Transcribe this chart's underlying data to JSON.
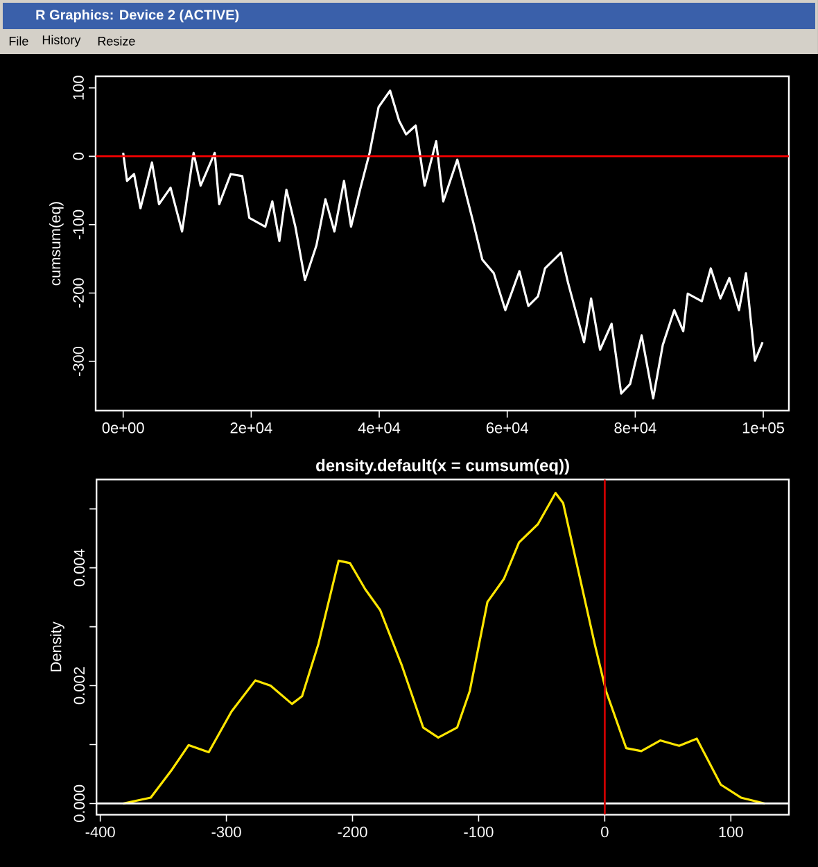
{
  "chart_data": [
    {
      "type": "line",
      "ylabel": "cumsum(eq)",
      "annotations": [
        "R Graphics: Device 2 (ACTIVE)",
        "File",
        "History",
        "Resize"
      ],
      "xlim": [
        -4300,
        104000
      ],
      "ylim": [
        -372,
        117
      ],
      "xticks": [
        {
          "value": 0,
          "label": "0e+00"
        },
        {
          "value": 20000,
          "label": "2e+04"
        },
        {
          "value": 40000,
          "label": "4e+04"
        },
        {
          "value": 60000,
          "label": "6e+04"
        },
        {
          "value": 80000,
          "label": "8e+04"
        },
        {
          "value": 100000,
          "label": "1e+05"
        }
      ],
      "yticks": [
        -300,
        -200,
        -100,
        0,
        100
      ],
      "color": "#ffffff",
      "x": [
        0,
        600,
        1700,
        2700,
        4500,
        5600,
        7400,
        9200,
        11000,
        12100,
        14300,
        15000,
        16800,
        18600,
        19700,
        22200,
        23300,
        24400,
        25500,
        26900,
        28400,
        30200,
        31600,
        33000,
        34500,
        35600,
        37000,
        38500,
        39900,
        41700,
        43100,
        44200,
        45700,
        47100,
        48900,
        50000,
        52200,
        54700,
        56100,
        57900,
        59700,
        61900,
        63300,
        64800,
        65900,
        68400,
        69500,
        72000,
        73100,
        74500,
        76300,
        77800,
        79200,
        81000,
        82800,
        84300,
        86100,
        87500,
        88200,
        90400,
        91800,
        93300,
        94700,
        96200,
        97300,
        98700,
        99900
      ],
      "values": [
        5,
        -36,
        -26,
        -76,
        -9,
        -70,
        -46,
        -110,
        5,
        -43,
        5,
        -70,
        -26,
        -29,
        -90,
        -103,
        -66,
        -124,
        -49,
        -103,
        -181,
        -130,
        -63,
        -110,
        -36,
        -103,
        -49,
        5,
        72,
        96,
        52,
        32,
        45,
        -43,
        22,
        -66,
        -5,
        -97,
        -151,
        -171,
        -225,
        -168,
        -219,
        -205,
        -164,
        -141,
        -185,
        -272,
        -208,
        -283,
        -245,
        -347,
        -333,
        -262,
        -354,
        -276,
        -225,
        -256,
        -201,
        -212,
        -164,
        -208,
        -178,
        -225,
        -171,
        -299,
        -272
      ],
      "ref_lines": [
        {
          "axis": "y",
          "value": 0,
          "color": "#ff0000"
        }
      ]
    },
    {
      "type": "line",
      "title": "density.default(x = cumsum(eq))",
      "ylabel": "Density",
      "xlim": [
        -403,
        146
      ],
      "ylim": [
        -0.00019,
        0.0055
      ],
      "xticks": [
        -400,
        -300,
        -200,
        -100,
        0,
        100
      ],
      "yticks": [
        {
          "value": 0,
          "label": "0.000"
        },
        {
          "value": 0.001,
          "label": null
        },
        {
          "value": 0.002,
          "label": "0.002"
        },
        {
          "value": 0.003,
          "label": null
        },
        {
          "value": 0.004,
          "label": "0.004"
        },
        {
          "value": 0.005,
          "label": null
        }
      ],
      "color": "#ffe600",
      "x": [
        -382,
        -360,
        -343,
        -330,
        -314,
        -296,
        -277,
        -265,
        -248,
        -240,
        -227,
        -211,
        -202,
        -190,
        -178,
        -161,
        -144,
        -132,
        -117,
        -107,
        -93,
        -80,
        -68,
        -53,
        -39,
        -33,
        -20,
        -8,
        1,
        17,
        29,
        44,
        59,
        73,
        92,
        108,
        127
      ],
      "values": [
        0,
        0.0001,
        0.00058,
        0.00099,
        0.00087,
        0.00156,
        0.00209,
        0.002,
        0.00169,
        0.00182,
        0.00271,
        0.00412,
        0.00408,
        0.00364,
        0.00328,
        0.00235,
        0.00129,
        0.00112,
        0.00129,
        0.00191,
        0.00342,
        0.00381,
        0.00443,
        0.00474,
        0.00527,
        0.0051,
        0.00386,
        0.00271,
        0.00191,
        0.00094,
        0.00089,
        0.00107,
        0.00098,
        0.0011,
        0.00032,
        0.0001,
        0
      ],
      "ref_lines": [
        {
          "axis": "y",
          "value": 0,
          "color": "#ffffff"
        },
        {
          "axis": "x",
          "value": 0,
          "color": "#cc0000"
        }
      ]
    }
  ]
}
